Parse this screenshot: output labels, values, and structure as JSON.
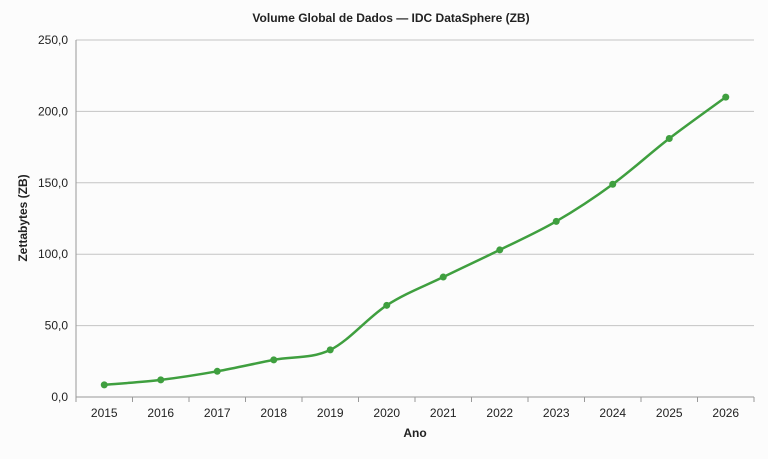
{
  "chart_data": {
    "type": "line",
    "title": "Volume Global de Dados — IDC DataSphere (ZB)",
    "xlabel": "Ano",
    "ylabel": "Zettabytes (ZB)",
    "categories": [
      "2015",
      "2016",
      "2017",
      "2018",
      "2019",
      "2020",
      "2021",
      "2022",
      "2023",
      "2024",
      "2025",
      "2026"
    ],
    "series": [
      {
        "name": "Zettabytes",
        "values": [
          8.5,
          12,
          18,
          26,
          33,
          64.2,
          84,
          103,
          123,
          149,
          181,
          210
        ]
      }
    ],
    "ylim": [
      0,
      250
    ],
    "yticks": [
      0,
      50,
      100,
      150,
      200,
      250
    ],
    "ytick_labels": [
      "0,0",
      "50,0",
      "100,0",
      "150,0",
      "200,0",
      "250,0"
    ],
    "grid": true,
    "smooth": true,
    "color": "#3f9f3f"
  }
}
